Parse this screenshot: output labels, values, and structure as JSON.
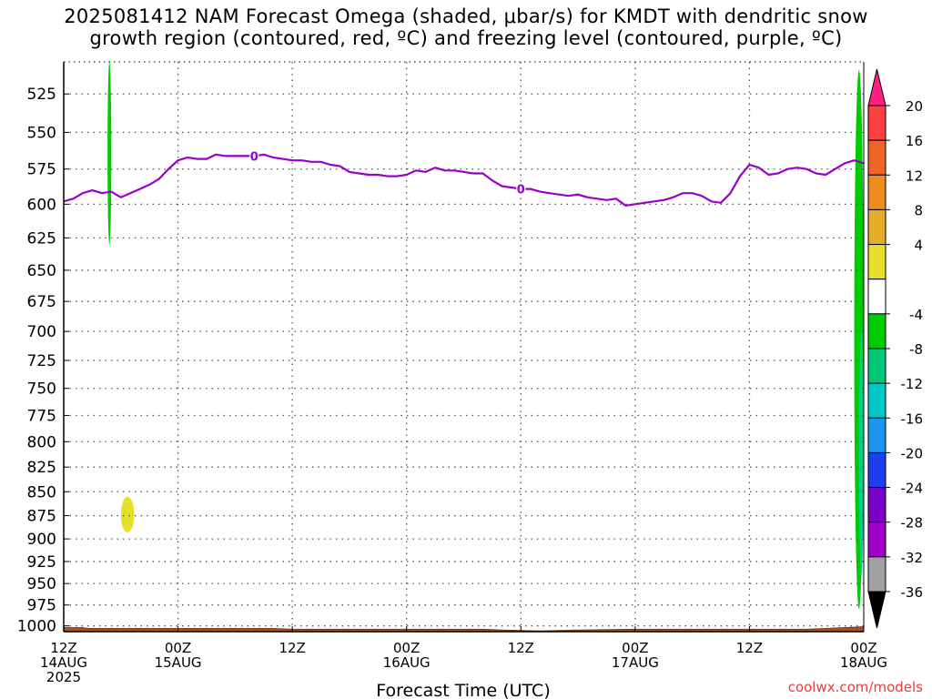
{
  "title": {
    "line1": "2025081412 NAM Forecast Omega (shaded, μbar/s) for KMDT with dendritic snow",
    "line2": "growth region (contoured, red, ºC) and freezing level (contoured, purple, ºC)"
  },
  "credit": "coolwx.com/models",
  "colors": {
    "frame": "#000000",
    "grid": "#555555",
    "freezing_line": "#9900cc",
    "terrain": "#a0522d",
    "green_shade": "#00cc00",
    "teal_shade": "#00d18c",
    "yellow_shade": "#e6e02a"
  },
  "chart_data": {
    "type": "time-height cross section",
    "title": "2025081412 NAM Forecast Omega (shaded, μbar/s) for KMDT with dendritic snow growth region (contoured, red, ºC) and freezing level (contoured, purple, ºC)",
    "xlabel": "Forecast Time (UTC)",
    "ylabel": "",
    "y_axis": {
      "scale": "log",
      "inverted": true,
      "unit": "mb",
      "range": [
        1007,
        505
      ],
      "ticks": [
        525,
        550,
        575,
        600,
        625,
        650,
        675,
        700,
        725,
        750,
        775,
        800,
        825,
        850,
        875,
        900,
        925,
        950,
        975,
        1000
      ]
    },
    "x_axis": {
      "unit": "forecast hour",
      "range": [
        0,
        84
      ],
      "ticks": [
        {
          "hour": 0,
          "lines": [
            "12Z",
            "14AUG",
            "2025"
          ]
        },
        {
          "hour": 12,
          "lines": [
            "00Z",
            "15AUG"
          ]
        },
        {
          "hour": 24,
          "lines": [
            "12Z"
          ]
        },
        {
          "hour": 36,
          "lines": [
            "00Z",
            "16AUG"
          ]
        },
        {
          "hour": 48,
          "lines": [
            "12Z"
          ]
        },
        {
          "hour": 60,
          "lines": [
            "00Z",
            "17AUG"
          ]
        },
        {
          "hour": 72,
          "lines": [
            "12Z"
          ]
        },
        {
          "hour": 84,
          "lines": [
            "00Z",
            "18AUG"
          ]
        }
      ]
    },
    "grid": true,
    "freezing_level": {
      "contour_value": "0",
      "label_hours": [
        20,
        48
      ],
      "points": [
        [
          0,
          598
        ],
        [
          1,
          596
        ],
        [
          2,
          592
        ],
        [
          3,
          590
        ],
        [
          4,
          592
        ],
        [
          5,
          591
        ],
        [
          6,
          595
        ],
        [
          7,
          592
        ],
        [
          8,
          589
        ],
        [
          9,
          586
        ],
        [
          10,
          582
        ],
        [
          11,
          575
        ],
        [
          12,
          569
        ],
        [
          13,
          567
        ],
        [
          14,
          568
        ],
        [
          15,
          568
        ],
        [
          16,
          565
        ],
        [
          17,
          566
        ],
        [
          18,
          566
        ],
        [
          19,
          566
        ],
        [
          20,
          566
        ],
        [
          21,
          565
        ],
        [
          22,
          567
        ],
        [
          23,
          568
        ],
        [
          24,
          569
        ],
        [
          25,
          569
        ],
        [
          26,
          570
        ],
        [
          27,
          570
        ],
        [
          28,
          572
        ],
        [
          29,
          573
        ],
        [
          30,
          577
        ],
        [
          31,
          578
        ],
        [
          32,
          579
        ],
        [
          33,
          579
        ],
        [
          34,
          580
        ],
        [
          35,
          580
        ],
        [
          36,
          579
        ],
        [
          37,
          576
        ],
        [
          38,
          577
        ],
        [
          39,
          574
        ],
        [
          40,
          576
        ],
        [
          41,
          576
        ],
        [
          42,
          577
        ],
        [
          43,
          578
        ],
        [
          44,
          578
        ],
        [
          45,
          583
        ],
        [
          46,
          587
        ],
        [
          47,
          588
        ],
        [
          48,
          589
        ],
        [
          49,
          589
        ],
        [
          50,
          591
        ],
        [
          51,
          592
        ],
        [
          52,
          593
        ],
        [
          53,
          594
        ],
        [
          54,
          593
        ],
        [
          55,
          595
        ],
        [
          56,
          596
        ],
        [
          57,
          597
        ],
        [
          58,
          596
        ],
        [
          59,
          601
        ],
        [
          60,
          600
        ],
        [
          61,
          599
        ],
        [
          62,
          598
        ],
        [
          63,
          597
        ],
        [
          64,
          595
        ],
        [
          65,
          592
        ],
        [
          66,
          592
        ],
        [
          67,
          594
        ],
        [
          68,
          598
        ],
        [
          69,
          599
        ],
        [
          70,
          592
        ],
        [
          71,
          580
        ],
        [
          72,
          572
        ],
        [
          73,
          574
        ],
        [
          74,
          579
        ],
        [
          75,
          578
        ],
        [
          76,
          575
        ],
        [
          77,
          574
        ],
        [
          78,
          575
        ],
        [
          79,
          578
        ],
        [
          80,
          579
        ],
        [
          81,
          575
        ],
        [
          82,
          571
        ],
        [
          83,
          569
        ],
        [
          84,
          571
        ]
      ]
    },
    "omega_shading": [
      {
        "level": "-8 to -4",
        "color": "#00cc00",
        "hours": [
          4.6,
          5.0
        ],
        "pressure_mb": [
          505,
          630
        ]
      },
      {
        "level": "4 to 8",
        "color": "#e6e02a",
        "hours": [
          6.0,
          7.4
        ],
        "pressure_mb": [
          855,
          893
        ]
      },
      {
        "level": "-8 to -4",
        "color": "#00cc00",
        "hours": [
          83.0,
          84.0
        ],
        "pressure_mb": [
          510,
          980
        ]
      },
      {
        "level": "-12 to -8",
        "color": "#00d18c",
        "hours": [
          83.5,
          84.0
        ],
        "pressure_mb": [
          700,
          940
        ]
      }
    ],
    "terrain": {
      "surface_pressure_mb": [
        [
          0,
          1002
        ],
        [
          2,
          1002
        ],
        [
          2.5,
          1003
        ],
        [
          12,
          1003
        ],
        [
          18,
          1003
        ],
        [
          22,
          1003
        ],
        [
          24,
          1004
        ],
        [
          36,
          1004
        ],
        [
          44,
          1004
        ],
        [
          46,
          1005
        ],
        [
          50,
          1006
        ],
        [
          54,
          1005
        ],
        [
          60,
          1004
        ],
        [
          78,
          1004
        ],
        [
          80,
          1003
        ],
        [
          84,
          1001
        ]
      ]
    },
    "colorbar": {
      "labels": [
        "20",
        "16",
        "12",
        "8",
        "4",
        "-4",
        "-8",
        "-12",
        "-16",
        "-20",
        "-24",
        "-28",
        "-32",
        "-36"
      ],
      "colors": [
        "#ff2080",
        "#ff4040",
        "#f06428",
        "#f08c1e",
        "#e6ac28",
        "#e6e02a",
        "#ffffff",
        "#00cc00",
        "#00c878",
        "#00c8c8",
        "#1e96f0",
        "#1e3cf0",
        "#7800c8",
        "#a000c8",
        "#a0a0a0",
        "#000000"
      ]
    }
  }
}
